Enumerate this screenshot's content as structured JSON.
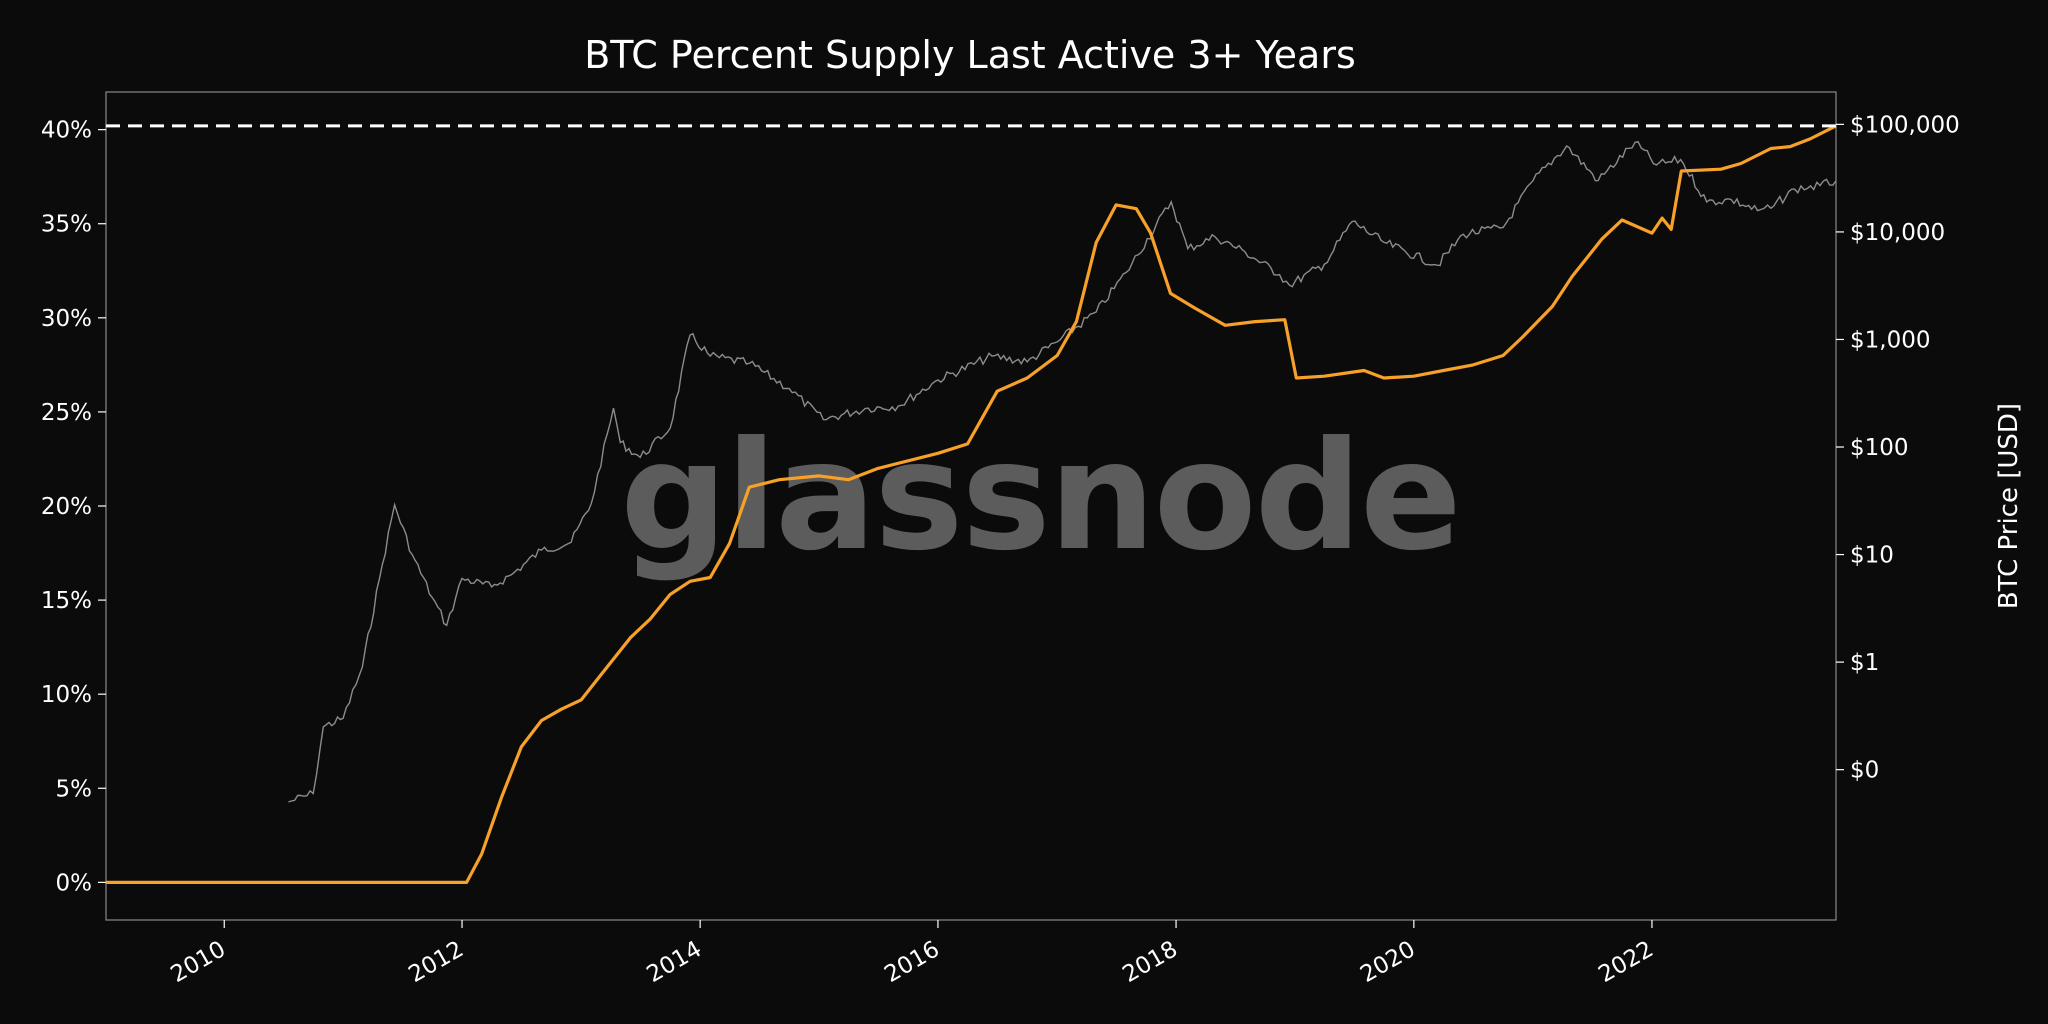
{
  "chart_data": {
    "type": "line",
    "title": "BTC Percent Supply Last Active 3+ Years",
    "xlabel": "",
    "ylabel": "",
    "y2label": "BTC Price [USD]",
    "watermark": "glassnode",
    "x_ticks": [
      "2010",
      "2012",
      "2014",
      "2016",
      "2018",
      "2020",
      "2022"
    ],
    "y_ticks": [
      "0%",
      "5%",
      "10%",
      "15%",
      "20%",
      "25%",
      "30%",
      "35%",
      "40%"
    ],
    "y2_ticks": [
      "$0",
      "$1",
      "$10",
      "$100",
      "$1,000",
      "$10,000",
      "$100,000"
    ],
    "xlim": [
      "2009-01-03",
      "2023-07-20"
    ],
    "ylim": [
      -2,
      42
    ],
    "y2_scale": "log",
    "grid": false,
    "reference_line": {
      "value": 40.2,
      "style": "dashed",
      "color": "#ffffff"
    },
    "colors": {
      "background": "#0b0b0b",
      "supply": "#f7a128",
      "price": "#8c8c8c",
      "axes": "#8a8a8a"
    },
    "series": [
      {
        "axis": "left",
        "color": "#f7a128",
        "points": [
          [
            "2009-01-03",
            0
          ],
          [
            "2012-01-15",
            0
          ],
          [
            "2012-03-01",
            1.5
          ],
          [
            "2012-05-01",
            4.5
          ],
          [
            "2012-07-01",
            7.2
          ],
          [
            "2012-09-01",
            8.6
          ],
          [
            "2012-11-01",
            9.2
          ],
          [
            "2013-01-01",
            9.7
          ],
          [
            "2013-03-01",
            11.0
          ],
          [
            "2013-06-01",
            13.0
          ],
          [
            "2013-08-01",
            14.0
          ],
          [
            "2013-10-01",
            15.3
          ],
          [
            "2013-12-01",
            16.0
          ],
          [
            "2014-02-01",
            16.2
          ],
          [
            "2014-04-01",
            18.0
          ],
          [
            "2014-06-01",
            21.0
          ],
          [
            "2014-09-01",
            21.4
          ],
          [
            "2015-01-01",
            21.6
          ],
          [
            "2015-04-01",
            21.4
          ],
          [
            "2015-07-01",
            22.0
          ],
          [
            "2016-01-01",
            22.8
          ],
          [
            "2016-04-01",
            23.3
          ],
          [
            "2016-07-01",
            26.1
          ],
          [
            "2016-10-01",
            26.8
          ],
          [
            "2017-01-01",
            28.0
          ],
          [
            "2017-03-01",
            29.8
          ],
          [
            "2017-05-01",
            34.0
          ],
          [
            "2017-07-01",
            36.0
          ],
          [
            "2017-09-01",
            35.8
          ],
          [
            "2017-10-15",
            34.5
          ],
          [
            "2017-12-15",
            31.3
          ],
          [
            "2018-03-01",
            30.5
          ],
          [
            "2018-06-01",
            29.6
          ],
          [
            "2018-09-01",
            29.8
          ],
          [
            "2018-12-01",
            29.9
          ],
          [
            "2019-01-05",
            26.8
          ],
          [
            "2019-04-01",
            26.9
          ],
          [
            "2019-08-01",
            27.2
          ],
          [
            "2019-10-01",
            26.8
          ],
          [
            "2020-01-01",
            26.9
          ],
          [
            "2020-04-01",
            27.2
          ],
          [
            "2020-07-01",
            27.5
          ],
          [
            "2020-10-01",
            28.0
          ],
          [
            "2020-12-01",
            29.0
          ],
          [
            "2021-03-01",
            30.6
          ],
          [
            "2021-05-01",
            32.2
          ],
          [
            "2021-08-01",
            34.2
          ],
          [
            "2021-10-01",
            35.2
          ],
          [
            "2022-01-01",
            34.5
          ],
          [
            "2022-02-01",
            35.3
          ],
          [
            "2022-03-01",
            34.7
          ],
          [
            "2022-04-01",
            37.8
          ],
          [
            "2022-08-01",
            37.9
          ],
          [
            "2022-10-01",
            38.2
          ],
          [
            "2023-01-01",
            39.0
          ],
          [
            "2023-03-01",
            39.1
          ],
          [
            "2023-05-01",
            39.5
          ],
          [
            "2023-07-20",
            40.2
          ]
        ]
      },
      {
        "axis": "right",
        "color": "#8c8c8c",
        "points": [
          [
            "2010-07-17",
            0.05
          ],
          [
            "2010-10-01",
            0.06
          ],
          [
            "2010-11-01",
            0.25
          ],
          [
            "2011-01-01",
            0.3
          ],
          [
            "2011-03-01",
            0.9
          ],
          [
            "2011-05-01",
            8.0
          ],
          [
            "2011-06-08",
            29.0
          ],
          [
            "2011-08-01",
            10.0
          ],
          [
            "2011-10-01",
            4.0
          ],
          [
            "2011-11-15",
            2.2
          ],
          [
            "2012-01-01",
            6.0
          ],
          [
            "2012-04-01",
            5.0
          ],
          [
            "2012-06-01",
            6.5
          ],
          [
            "2012-09-01",
            11.0
          ],
          [
            "2012-12-01",
            13.0
          ],
          [
            "2013-02-01",
            30.0
          ],
          [
            "2013-04-10",
            230.0
          ],
          [
            "2013-05-01",
            110.0
          ],
          [
            "2013-07-01",
            80.0
          ],
          [
            "2013-10-01",
            150.0
          ],
          [
            "2013-12-01",
            1100.0
          ],
          [
            "2014-02-01",
            700.0
          ],
          [
            "2014-06-01",
            600.0
          ],
          [
            "2014-10-01",
            350.0
          ],
          [
            "2015-01-14",
            180.0
          ],
          [
            "2015-06-01",
            230.0
          ],
          [
            "2015-09-01",
            240.0
          ],
          [
            "2016-01-01",
            420.0
          ],
          [
            "2016-06-15",
            700.0
          ],
          [
            "2016-10-01",
            620.0
          ],
          [
            "2017-01-01",
            950.0
          ],
          [
            "2017-05-01",
            1800.0
          ],
          [
            "2017-08-01",
            4200.0
          ],
          [
            "2017-12-17",
            19000.0
          ],
          [
            "2018-02-06",
            7000.0
          ],
          [
            "2018-05-01",
            9000.0
          ],
          [
            "2018-08-01",
            6500.0
          ],
          [
            "2018-11-15",
            4000.0
          ],
          [
            "2018-12-15",
            3200.0
          ],
          [
            "2019-04-01",
            5000.0
          ],
          [
            "2019-06-26",
            12500.0
          ],
          [
            "2019-10-01",
            8000.0
          ],
          [
            "2020-03-13",
            4900.0
          ],
          [
            "2020-06-01",
            9500.0
          ],
          [
            "2020-10-01",
            11000.0
          ],
          [
            "2021-01-01",
            30000.0
          ],
          [
            "2021-04-14",
            63000.0
          ],
          [
            "2021-07-20",
            30000.0
          ],
          [
            "2021-11-10",
            68000.0
          ],
          [
            "2022-01-15",
            42000.0
          ],
          [
            "2022-03-30",
            47000.0
          ],
          [
            "2022-06-18",
            19000.0
          ],
          [
            "2022-09-01",
            20000.0
          ],
          [
            "2022-11-21",
            15800.0
          ],
          [
            "2023-01-01",
            16600.0
          ],
          [
            "2023-03-15",
            25000.0
          ],
          [
            "2023-06-01",
            27000.0
          ],
          [
            "2023-07-20",
            29800.0
          ]
        ]
      }
    ]
  }
}
